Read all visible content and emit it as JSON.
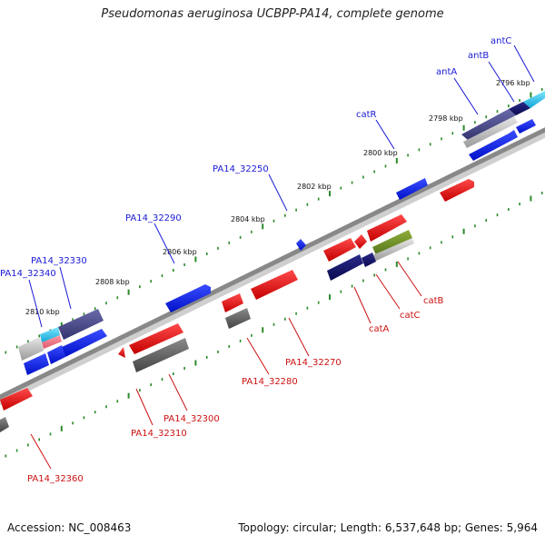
{
  "title": "Pseudomonas aeruginosa UCBPP-PA14, complete genome",
  "footer": {
    "accession": "Accession: NC_008463",
    "summary": "Topology: circular; Length: 6,537,648 bp; Genes: 5,964"
  },
  "colors": {
    "forward_label": "#1a1ad6",
    "reverse_label": "#cc1111",
    "backbone": "#8a8a8a",
    "tick": "#2a8a2a"
  },
  "ticks": [
    "2796 kbp",
    "2798 kbp",
    "2800 kbp",
    "2802 kbp",
    "2804 kbp",
    "2806 kbp",
    "2808 kbp",
    "2810 kbp"
  ],
  "labels": {
    "forward": [
      "antC",
      "antB",
      "antA",
      "catR",
      "PA14_32250",
      "PA14_32290",
      "PA14_32330",
      "PA14_32340"
    ],
    "reverse": [
      "catB",
      "catC",
      "catA",
      "PA14_32270",
      "PA14_32280",
      "PA14_32300",
      "PA14_32310",
      "PA14_32360"
    ]
  }
}
